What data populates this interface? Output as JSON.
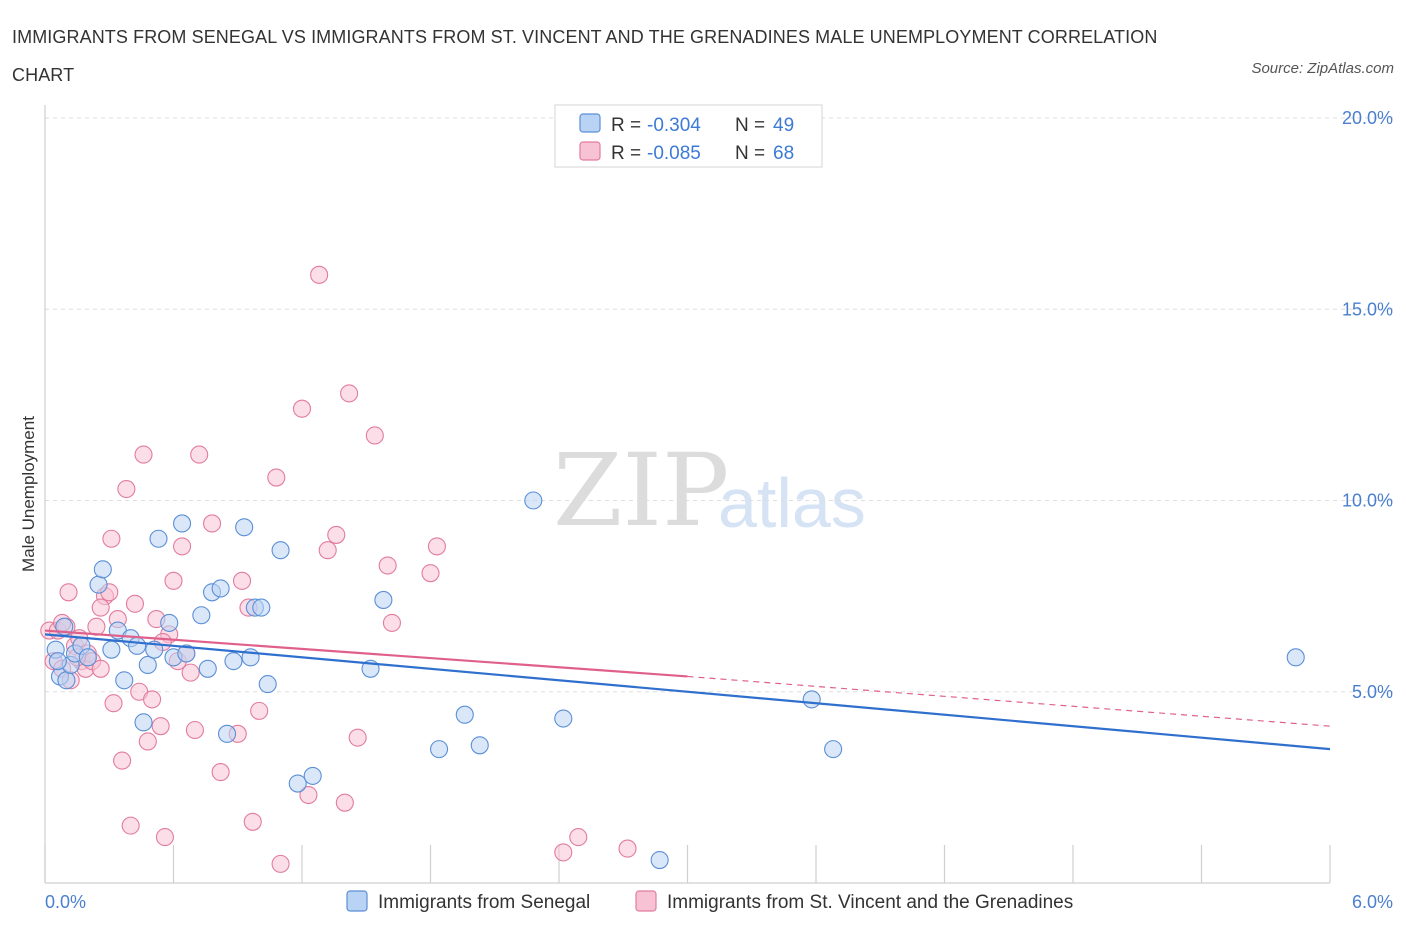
{
  "title": "IMMIGRANTS FROM SENEGAL VS IMMIGRANTS FROM ST. VINCENT AND THE GRENADINES MALE UNEMPLOYMENT CORRELATION CHART",
  "source": "Source: ZipAtlas.com",
  "watermark": {
    "zip": "ZIP",
    "atlas": "atlas"
  },
  "colors": {
    "senegal_fill": "#b9d3f4",
    "senegal_stroke": "#5b8fd6",
    "senegal_line": "#2f6fce",
    "svg_fill": "#f7c3d4",
    "svg_stroke": "#e27c9f",
    "svg_line": "#e0608c",
    "tick_text": "#4a7fd0",
    "grid": "#dddddd"
  },
  "legend": {
    "rows": [
      {
        "r_label": "R =",
        "r_value": "-0.304",
        "n_label": "N =",
        "n_value": "49"
      },
      {
        "r_label": "R =",
        "r_value": "-0.085",
        "n_label": "N =",
        "n_value": "68"
      }
    ]
  },
  "bottom_legend": [
    "Immigrants from Senegal",
    "Immigrants from St. Vincent and the Grenadines"
  ],
  "chart_data": {
    "type": "scatter",
    "title": "IMMIGRANTS FROM SENEGAL VS IMMIGRANTS FROM ST. VINCENT AND THE GRENADINES MALE UNEMPLOYMENT CORRELATION CHART",
    "xlabel": "",
    "ylabel": "Male Unemployment",
    "xlim": [
      0,
      6
    ],
    "ylim": [
      0,
      20
    ],
    "x_tick_labels": [
      "0.0%",
      "6.0%"
    ],
    "y_ticks": [
      5,
      10,
      15,
      20
    ],
    "y_tick_labels": [
      "5.0%",
      "10.0%",
      "15.0%",
      "20.0%"
    ],
    "grid": true,
    "series": [
      {
        "name": "Immigrants from Senegal",
        "trend": {
          "x": [
            0.0,
            6.0
          ],
          "y": [
            6.5,
            3.5
          ]
        },
        "points": [
          [
            0.05,
            6.1
          ],
          [
            0.07,
            5.4
          ],
          [
            0.09,
            6.7
          ],
          [
            0.1,
            5.3
          ],
          [
            0.12,
            5.7
          ],
          [
            0.14,
            6.0
          ],
          [
            0.17,
            6.2
          ],
          [
            0.2,
            5.9
          ],
          [
            0.25,
            7.8
          ],
          [
            0.27,
            8.2
          ],
          [
            0.31,
            6.1
          ],
          [
            0.34,
            6.6
          ],
          [
            0.37,
            5.3
          ],
          [
            0.4,
            6.4
          ],
          [
            0.43,
            6.2
          ],
          [
            0.46,
            4.2
          ],
          [
            0.48,
            5.7
          ],
          [
            0.51,
            6.1
          ],
          [
            0.53,
            9.0
          ],
          [
            0.58,
            6.8
          ],
          [
            0.6,
            5.9
          ],
          [
            0.64,
            9.4
          ],
          [
            0.66,
            6.0
          ],
          [
            0.73,
            7.0
          ],
          [
            0.76,
            5.6
          ],
          [
            0.78,
            7.6
          ],
          [
            0.82,
            7.7
          ],
          [
            0.85,
            3.9
          ],
          [
            0.88,
            5.8
          ],
          [
            0.93,
            9.3
          ],
          [
            0.96,
            5.9
          ],
          [
            0.98,
            7.2
          ],
          [
            1.01,
            7.2
          ],
          [
            1.04,
            5.2
          ],
          [
            1.1,
            8.7
          ],
          [
            1.18,
            2.6
          ],
          [
            1.25,
            2.8
          ],
          [
            1.52,
            5.6
          ],
          [
            1.58,
            7.4
          ],
          [
            1.84,
            3.5
          ],
          [
            1.96,
            4.4
          ],
          [
            2.03,
            3.6
          ],
          [
            2.28,
            10.0
          ],
          [
            2.42,
            4.3
          ],
          [
            2.87,
            0.6
          ],
          [
            3.58,
            4.8
          ],
          [
            3.68,
            3.5
          ],
          [
            5.84,
            5.9
          ],
          [
            0.06,
            5.8
          ]
        ]
      },
      {
        "name": "Immigrants from St. Vincent and the Grenadines",
        "trend": {
          "x": [
            0.0,
            3.0
          ],
          "y": [
            6.6,
            5.4
          ]
        },
        "trend_dashed": {
          "x": [
            3.0,
            6.0
          ],
          "y": [
            5.4,
            4.1
          ]
        },
        "points": [
          [
            0.02,
            6.6
          ],
          [
            0.04,
            5.8
          ],
          [
            0.06,
            6.6
          ],
          [
            0.08,
            5.6
          ],
          [
            0.1,
            6.7
          ],
          [
            0.12,
            5.3
          ],
          [
            0.14,
            6.2
          ],
          [
            0.16,
            6.4
          ],
          [
            0.17,
            5.8
          ],
          [
            0.19,
            5.6
          ],
          [
            0.2,
            6.0
          ],
          [
            0.22,
            5.8
          ],
          [
            0.24,
            6.7
          ],
          [
            0.26,
            5.6
          ],
          [
            0.28,
            7.5
          ],
          [
            0.3,
            7.6
          ],
          [
            0.31,
            9.0
          ],
          [
            0.32,
            4.7
          ],
          [
            0.34,
            6.9
          ],
          [
            0.36,
            3.2
          ],
          [
            0.38,
            10.3
          ],
          [
            0.4,
            1.5
          ],
          [
            0.42,
            7.3
          ],
          [
            0.44,
            5.0
          ],
          [
            0.46,
            11.2
          ],
          [
            0.48,
            3.7
          ],
          [
            0.5,
            4.8
          ],
          [
            0.52,
            6.9
          ],
          [
            0.54,
            4.1
          ],
          [
            0.56,
            1.2
          ],
          [
            0.58,
            6.5
          ],
          [
            0.6,
            7.9
          ],
          [
            0.62,
            5.8
          ],
          [
            0.64,
            8.8
          ],
          [
            0.66,
            6.0
          ],
          [
            0.68,
            5.5
          ],
          [
            0.7,
            4.0
          ],
          [
            0.72,
            11.2
          ],
          [
            0.78,
            9.4
          ],
          [
            0.82,
            2.9
          ],
          [
            0.9,
            3.9
          ],
          [
            0.92,
            7.9
          ],
          [
            0.95,
            7.2
          ],
          [
            0.97,
            1.6
          ],
          [
            1.0,
            4.5
          ],
          [
            1.08,
            10.6
          ],
          [
            1.1,
            0.5
          ],
          [
            1.2,
            12.4
          ],
          [
            1.23,
            2.3
          ],
          [
            1.28,
            15.9
          ],
          [
            1.32,
            8.7
          ],
          [
            1.36,
            9.1
          ],
          [
            1.4,
            2.1
          ],
          [
            1.42,
            12.8
          ],
          [
            1.46,
            3.8
          ],
          [
            1.54,
            11.7
          ],
          [
            1.6,
            8.3
          ],
          [
            1.62,
            6.8
          ],
          [
            1.8,
            8.1
          ],
          [
            1.83,
            8.8
          ],
          [
            2.42,
            0.8
          ],
          [
            2.49,
            1.2
          ],
          [
            2.72,
            0.9
          ],
          [
            0.08,
            6.8
          ],
          [
            0.15,
            5.9
          ],
          [
            0.11,
            7.6
          ],
          [
            0.55,
            6.3
          ],
          [
            0.26,
            7.2
          ]
        ]
      }
    ]
  }
}
